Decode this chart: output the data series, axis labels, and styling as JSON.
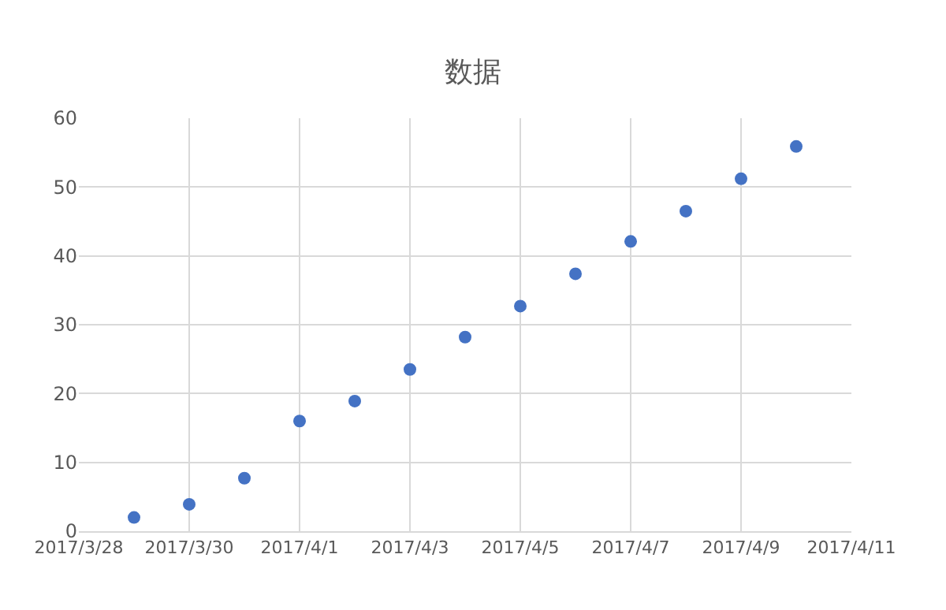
{
  "chart_data": {
    "type": "scatter",
    "title": "数据",
    "x": [
      "2017-03-29",
      "2017-03-30",
      "2017-03-31",
      "2017-04-01",
      "2017-04-02",
      "2017-04-03",
      "2017-04-04",
      "2017-04-05",
      "2017-04-06",
      "2017-04-07",
      "2017-04-08",
      "2017-04-09",
      "2017-04-10"
    ],
    "series": [
      {
        "color": "#4472c4",
        "values": [
          2.0,
          3.9,
          7.7,
          16.0,
          18.9,
          23.5,
          28.2,
          32.7,
          37.4,
          42.1,
          46.5,
          51.2,
          55.9
        ]
      }
    ],
    "xlim": [
      "2017-03-28",
      "2017-04-11"
    ],
    "xticks": [
      {
        "value": "2017-03-28",
        "label": "2017/3/28"
      },
      {
        "value": "2017-03-30",
        "label": "2017/3/30"
      },
      {
        "value": "2017-04-01",
        "label": "2017/4/1"
      },
      {
        "value": "2017-04-03",
        "label": "2017/4/3"
      },
      {
        "value": "2017-04-05",
        "label": "2017/4/5"
      },
      {
        "value": "2017-04-07",
        "label": "2017/4/7"
      },
      {
        "value": "2017-04-09",
        "label": "2017/4/9"
      },
      {
        "value": "2017-04-11",
        "label": "2017/4/11"
      }
    ],
    "ylim": [
      0,
      60
    ],
    "yticks": [
      0,
      10,
      20,
      30,
      40,
      50,
      60
    ],
    "grid": true,
    "marker": "circle"
  }
}
